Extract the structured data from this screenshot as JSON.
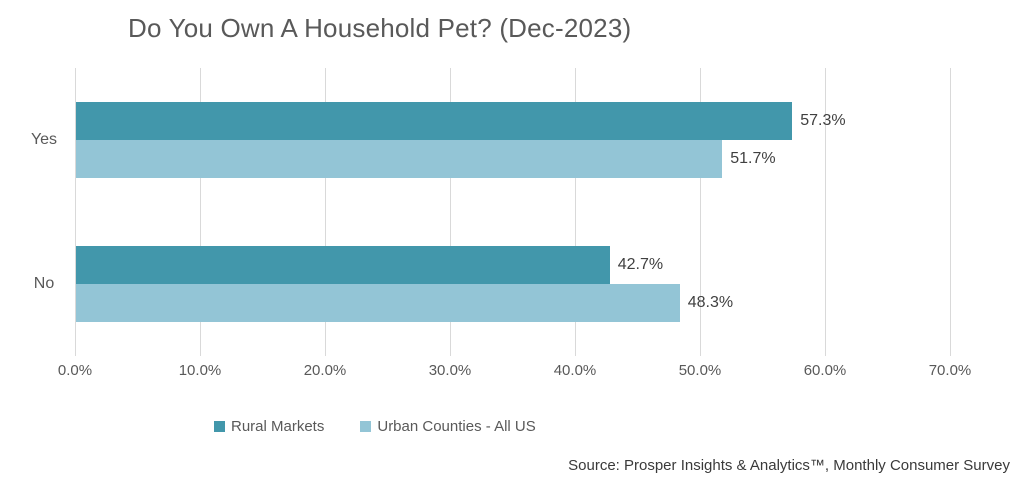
{
  "chart_data": {
    "type": "bar",
    "orientation": "horizontal",
    "title": "Do You Own A Household Pet? (Dec-2023)",
    "categories": [
      "Yes",
      "No"
    ],
    "series": [
      {
        "name": "Rural Markets",
        "color": "#4297ab",
        "values": [
          57.3,
          42.7
        ]
      },
      {
        "name": "Urban Counties - All US",
        "color": "#93c5d6",
        "values": [
          51.7,
          48.3
        ]
      }
    ],
    "value_labels": [
      [
        "57.3%",
        "42.7%"
      ],
      [
        "51.7%",
        "48.3%"
      ]
    ],
    "x_ticks": [
      "0.0%",
      "10.0%",
      "20.0%",
      "30.0%",
      "40.0%",
      "50.0%",
      "60.0%",
      "70.0%"
    ],
    "xlim": [
      0,
      70
    ],
    "grid": true,
    "gridline_color": "#d9d9d9",
    "text_color": "#595959",
    "data_label_color": "#404040",
    "legend_position": "bottom"
  },
  "source": {
    "text": "Source: Prosper Insights & Analytics™, Monthly Consumer Survey"
  }
}
